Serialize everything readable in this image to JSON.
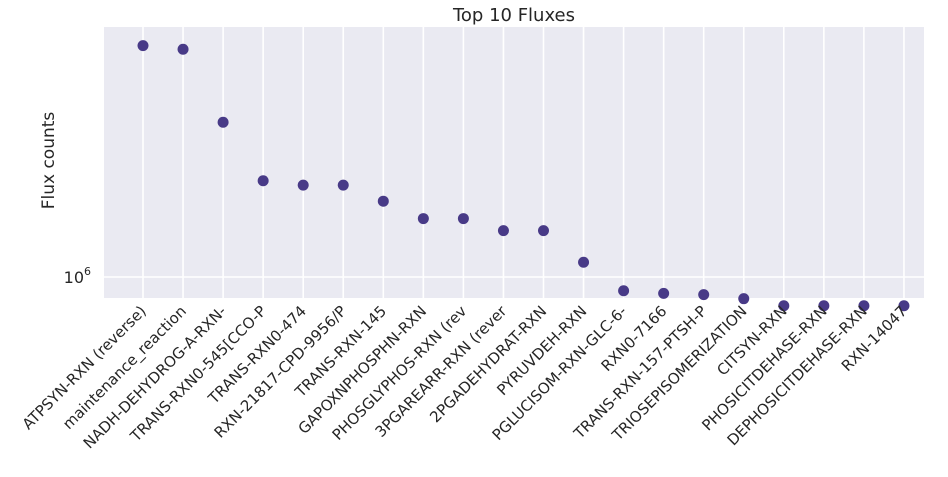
{
  "chart_data": {
    "type": "scatter",
    "title": "Top 10 Fluxes",
    "xlabel": "",
    "ylabel": "Flux counts",
    "yscale": "log",
    "yticks": [
      {
        "base": "10",
        "exp": "6"
      }
    ],
    "ylim": [
      830000,
      9200000
    ],
    "grid": true,
    "marker_color": "#483a87",
    "plot_bg": "#eaeaf2",
    "grid_color": "#ffffff",
    "categories": [
      "ATPSYN-RXN (reverse)",
      "maintenance_reaction",
      "NADH-DEHYDROG-A-RXN-",
      "TRANS-RXN0-545[CCO-P",
      "TRANS-RXN0-474",
      "RXN-21817-CPD-9956/P",
      "TRANS-RXN-145",
      "GAPOXNPHOSPHN-RXN",
      "PHOSGLYPHOS-RXN (rev",
      "3PGAREARR-RXN (rever",
      "2PGADEHYDRAT-RXN",
      "PYRUVDEH-RXN",
      "PGLUCISOM-RXN-GLC-6-",
      "RXN0-7166",
      "TRANS-RXN-157-PTSH-P",
      "TRIOSEPISOMERIZATION",
      "CITSYN-RXN",
      "PHOSICITDEHASE-RXN",
      "DEPHOSICITDEHASE-RXN",
      "RXN-14047"
    ],
    "values": [
      7800000,
      7550000,
      3950000,
      2350000,
      2260000,
      2260000,
      1960000,
      1680000,
      1680000,
      1510000,
      1510000,
      1140000,
      885000,
      865000,
      855000,
      825000,
      775000,
      775000,
      775000,
      775000
    ]
  }
}
